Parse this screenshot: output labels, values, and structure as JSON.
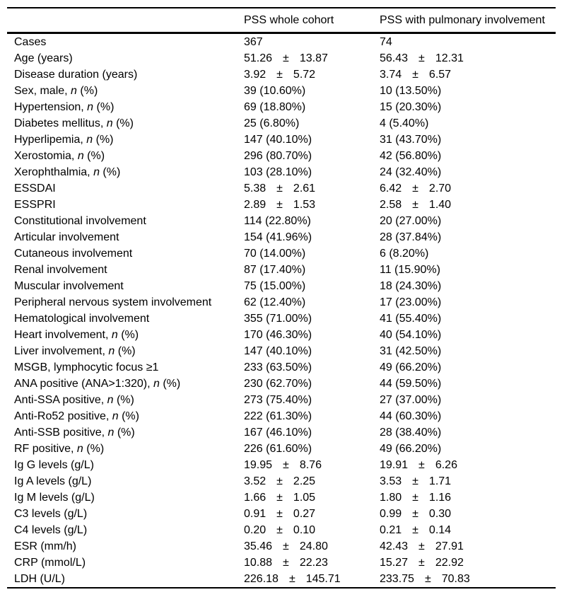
{
  "table": {
    "headers": [
      "",
      "PSS whole cohort",
      "PSS with pulmonary involvement"
    ],
    "rows": [
      [
        "Cases",
        "367",
        "74"
      ],
      [
        "Age (years)",
        "51.26 ± 13.87",
        "56.43 ± 12.31"
      ],
      [
        "Disease duration (years)",
        "3.92 ± 5.72",
        "3.74 ± 6.57"
      ],
      [
        "Sex, male, n (%)",
        "39 (10.60%)",
        "10 (13.50%)"
      ],
      [
        "Hypertension, n (%)",
        "69 (18.80%)",
        "15 (20.30%)"
      ],
      [
        "Diabetes mellitus, n (%)",
        "25 (6.80%)",
        "4 (5.40%)"
      ],
      [
        "Hyperlipemia, n (%)",
        "147 (40.10%)",
        "31 (43.70%)"
      ],
      [
        "Xerostomia, n (%)",
        "296 (80.70%)",
        "42 (56.80%)"
      ],
      [
        "Xerophthalmia, n (%)",
        "103 (28.10%)",
        "24 (32.40%)"
      ],
      [
        "ESSDAI",
        "5.38 ± 2.61",
        "6.42 ± 2.70"
      ],
      [
        "ESSPRI",
        "2.89 ± 1.53",
        "2.58 ± 1.40"
      ],
      [
        "Constitutional involvement",
        "114 (22.80%)",
        "20 (27.00%)"
      ],
      [
        "Articular involvement",
        "154 (41.96%)",
        "28 (37.84%)"
      ],
      [
        "Cutaneous involvement",
        "70 (14.00%)",
        "6 (8.20%)"
      ],
      [
        "Renal involvement",
        "87 (17.40%)",
        "11 (15.90%)"
      ],
      [
        "Muscular involvement",
        "75 (15.00%)",
        "18 (24.30%)"
      ],
      [
        "Peripheral nervous system involvement",
        "62 (12.40%)",
        "17 (23.00%)"
      ],
      [
        "Hematological involvement",
        "355 (71.00%)",
        "41 (55.40%)"
      ],
      [
        "Heart involvement, n (%)",
        "170 (46.30%)",
        "40 (54.10%)"
      ],
      [
        "Liver involvement, n (%)",
        "147 (40.10%)",
        "31 (42.50%)"
      ],
      [
        "MSGB, lymphocytic focus ≥1",
        "233 (63.50%)",
        "49 (66.20%)"
      ],
      [
        "ANA positive (ANA>1:320), n (%)",
        "230 (62.70%)",
        "44 (59.50%)"
      ],
      [
        "Anti-SSA positive, n (%)",
        "273 (75.40%)",
        "27 (37.00%)"
      ],
      [
        "Anti-Ro52 positive, n (%)",
        "222 (61.30%)",
        "44 (60.30%)"
      ],
      [
        "Anti-SSB positive, n (%)",
        "167 (46.10%)",
        "28 (38.40%)"
      ],
      [
        "RF positive, n (%)",
        "226 (61.60%)",
        "49 (66.20%)"
      ],
      [
        "Ig G levels (g/L)",
        "19.95 ± 8.76",
        "19.91 ± 6.26"
      ],
      [
        "Ig A levels (g/L)",
        "3.52 ± 2.25",
        "3.53 ± 1.71"
      ],
      [
        "Ig M levels (g/L)",
        "1.66 ± 1.05",
        "1.80 ± 1.16"
      ],
      [
        "C3 levels (g/L)",
        "0.91 ± 0.27",
        "0.99 ± 0.30"
      ],
      [
        "C4 levels (g/L)",
        "0.20 ± 0.10",
        "0.21 ± 0.14"
      ],
      [
        "ESR (mm/h)",
        "35.46 ± 24.80",
        "42.43 ± 27.91"
      ],
      [
        "CRP (mmol/L)",
        "10.88 ± 22.23",
        "15.27 ± 22.92"
      ],
      [
        "LDH (U/L)",
        "226.18 ± 145.71",
        "233.75 ± 70.83"
      ]
    ]
  },
  "colors": {
    "text": "#000000",
    "rule": "#000000",
    "background": "#ffffff"
  }
}
